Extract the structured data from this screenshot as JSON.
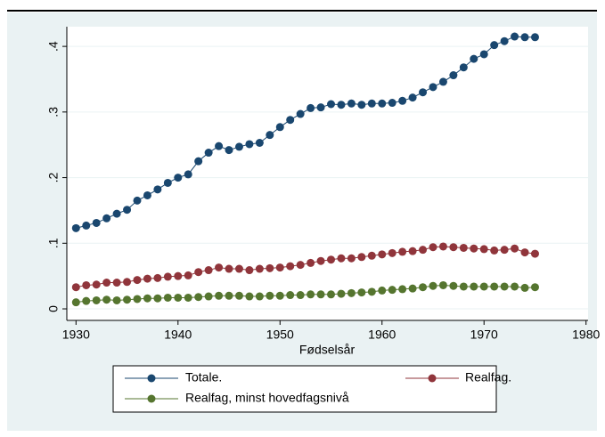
{
  "chart_data": {
    "type": "line",
    "xlabel": "Fødselsår",
    "x": [
      1930,
      1931,
      1932,
      1933,
      1934,
      1935,
      1936,
      1937,
      1938,
      1939,
      1940,
      1941,
      1942,
      1943,
      1944,
      1945,
      1946,
      1947,
      1948,
      1949,
      1950,
      1951,
      1952,
      1953,
      1954,
      1955,
      1956,
      1957,
      1958,
      1959,
      1960,
      1961,
      1962,
      1963,
      1964,
      1965,
      1966,
      1967,
      1968,
      1969,
      1970,
      1971,
      1972,
      1973,
      1974,
      1975
    ],
    "series": [
      {
        "name": "Totale.",
        "color": "#1a476f",
        "values": [
          0.123,
          0.127,
          0.131,
          0.138,
          0.145,
          0.151,
          0.165,
          0.173,
          0.182,
          0.192,
          0.2,
          0.205,
          0.225,
          0.238,
          0.248,
          0.242,
          0.247,
          0.251,
          0.253,
          0.265,
          0.277,
          0.288,
          0.297,
          0.306,
          0.307,
          0.312,
          0.311,
          0.313,
          0.311,
          0.313,
          0.313,
          0.314,
          0.317,
          0.322,
          0.33,
          0.338,
          0.346,
          0.356,
          0.368,
          0.381,
          0.388,
          0.402,
          0.408,
          0.415,
          0.414,
          0.414
        ]
      },
      {
        "name": "Realfag.",
        "color": "#90353b",
        "values": [
          0.033,
          0.036,
          0.037,
          0.04,
          0.04,
          0.041,
          0.044,
          0.046,
          0.047,
          0.049,
          0.05,
          0.051,
          0.056,
          0.059,
          0.063,
          0.061,
          0.061,
          0.059,
          0.061,
          0.062,
          0.063,
          0.065,
          0.067,
          0.07,
          0.073,
          0.075,
          0.077,
          0.077,
          0.079,
          0.081,
          0.083,
          0.085,
          0.087,
          0.088,
          0.09,
          0.094,
          0.095,
          0.094,
          0.093,
          0.092,
          0.091,
          0.089,
          0.09,
          0.092,
          0.086,
          0.084
        ]
      },
      {
        "name": "Realfag, minst hovedfagsnivå",
        "color": "#55752f",
        "values": [
          0.01,
          0.012,
          0.013,
          0.014,
          0.013,
          0.014,
          0.015,
          0.016,
          0.016,
          0.017,
          0.017,
          0.017,
          0.018,
          0.019,
          0.02,
          0.02,
          0.02,
          0.019,
          0.019,
          0.02,
          0.02,
          0.021,
          0.021,
          0.022,
          0.022,
          0.022,
          0.023,
          0.024,
          0.025,
          0.026,
          0.028,
          0.029,
          0.03,
          0.031,
          0.033,
          0.035,
          0.036,
          0.035,
          0.034,
          0.034,
          0.034,
          0.034,
          0.034,
          0.034,
          0.032,
          0.033
        ]
      }
    ],
    "xlim": [
      1929.1,
      1980.2
    ],
    "xticks": [
      1930,
      1940,
      1950,
      1960,
      1970,
      1980
    ],
    "ylim": [
      -0.0176,
      0.43
    ],
    "yticks": [
      0,
      {
        "value": 0.1,
        "label": ".1"
      },
      {
        "value": 0.2,
        "label": ".2"
      },
      {
        "value": 0.3,
        "label": ".3"
      },
      {
        "value": 0.4,
        "label": ".4"
      }
    ],
    "grid": true
  }
}
